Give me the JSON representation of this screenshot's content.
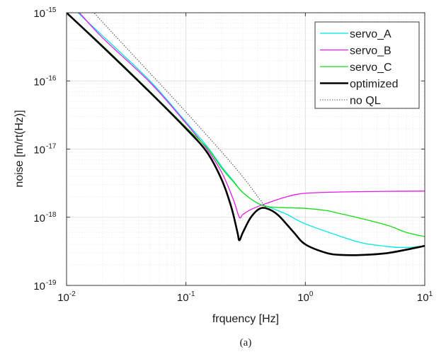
{
  "chart_data": {
    "type": "line",
    "title": "",
    "xlabel": "frquency [Hz]",
    "ylabel": "noise [m/rt(Hz)]",
    "caption": "(a)",
    "x_scale": "log",
    "y_scale": "log",
    "xlim": [
      0.01,
      10
    ],
    "ylim": [
      1e-19,
      1e-15
    ],
    "x_ticks": [
      {
        "value": 0.01,
        "base": "10",
        "exp": "-2"
      },
      {
        "value": 0.1,
        "base": "10",
        "exp": "-1"
      },
      {
        "value": 1,
        "base": "10",
        "exp": "0"
      },
      {
        "value": 10,
        "base": "10",
        "exp": "1"
      }
    ],
    "y_ticks": [
      {
        "value": 1e-19,
        "base": "10",
        "exp": "-19"
      },
      {
        "value": 1e-18,
        "base": "10",
        "exp": "-18"
      },
      {
        "value": 1e-17,
        "base": "10",
        "exp": "-17"
      },
      {
        "value": 1e-16,
        "base": "10",
        "exp": "-16"
      },
      {
        "value": 1e-15,
        "base": "10",
        "exp": "-15"
      }
    ],
    "grid": true,
    "minor_grid": true,
    "legend_position": "top-right",
    "series": [
      {
        "name": "servo_A",
        "color": "#00e5e5",
        "width": 1.3,
        "style": "solid",
        "points": [
          [
            0.01,
            1.6e-15
          ],
          [
            0.0125,
            1e-15
          ],
          [
            0.02,
            4.6e-16
          ],
          [
            0.05,
            1e-16
          ],
          [
            0.1,
            2.5e-17
          ],
          [
            0.15,
            1.1e-17
          ],
          [
            0.2,
            5.5e-18
          ],
          [
            0.25,
            3.4e-18
          ],
          [
            0.3,
            2.3e-18
          ],
          [
            0.4,
            1.6e-18
          ],
          [
            0.5,
            1.4e-18
          ],
          [
            0.7,
            1.1e-18
          ],
          [
            1,
            8e-19
          ],
          [
            2,
            5.2e-19
          ],
          [
            3,
            4.2e-19
          ],
          [
            5,
            3.7e-19
          ],
          [
            7,
            3.6e-19
          ],
          [
            10,
            3.8e-19
          ]
        ]
      },
      {
        "name": "servo_B",
        "color": "#e619e6",
        "width": 1.3,
        "style": "solid",
        "points": [
          [
            0.01,
            1.5e-15
          ],
          [
            0.0128,
            1e-15
          ],
          [
            0.02,
            4.3e-16
          ],
          [
            0.05,
            9.5e-17
          ],
          [
            0.1,
            2.4e-17
          ],
          [
            0.15,
            1e-17
          ],
          [
            0.2,
            4.5e-18
          ],
          [
            0.25,
            1.8e-18
          ],
          [
            0.28,
            1e-18
          ],
          [
            0.3,
            1.1e-18
          ],
          [
            0.35,
            1.3e-18
          ],
          [
            0.45,
            1.55e-18
          ],
          [
            0.7,
            2e-18
          ],
          [
            1,
            2.25e-18
          ],
          [
            2,
            2.35e-18
          ],
          [
            5,
            2.4e-18
          ],
          [
            10,
            2.42e-18
          ]
        ]
      },
      {
        "name": "servo_C",
        "color": "#19d919",
        "width": 1.3,
        "style": "solid",
        "points": [
          [
            0.01,
            1e-15
          ],
          [
            0.02,
            3.3e-16
          ],
          [
            0.05,
            7e-17
          ],
          [
            0.1,
            2.1e-17
          ],
          [
            0.15,
            1.05e-17
          ],
          [
            0.2,
            5.2e-18
          ],
          [
            0.25,
            3.3e-18
          ],
          [
            0.3,
            2.3e-18
          ],
          [
            0.4,
            1.6e-18
          ],
          [
            0.5,
            1.42e-18
          ],
          [
            0.7,
            1.38e-18
          ],
          [
            1,
            1.35e-18
          ],
          [
            1.5,
            1.25e-18
          ],
          [
            2,
            1.12e-18
          ],
          [
            3,
            9.5e-19
          ],
          [
            5,
            7.5e-19
          ],
          [
            7,
            6e-19
          ],
          [
            10,
            5.2e-19
          ]
        ]
      },
      {
        "name": "optimized",
        "color": "#000000",
        "width": 2.6,
        "style": "solid",
        "points": [
          [
            0.01,
            1e-15
          ],
          [
            0.02,
            3.2e-16
          ],
          [
            0.05,
            6.8e-17
          ],
          [
            0.1,
            2e-17
          ],
          [
            0.15,
            9e-18
          ],
          [
            0.2,
            3.5e-18
          ],
          [
            0.24,
            1.4e-18
          ],
          [
            0.27,
            6e-19
          ],
          [
            0.28,
            4.6e-19
          ],
          [
            0.3,
            6e-19
          ],
          [
            0.35,
            1e-18
          ],
          [
            0.42,
            1.35e-18
          ],
          [
            0.5,
            1.3e-18
          ],
          [
            0.6,
            1.05e-18
          ],
          [
            0.8,
            6e-19
          ],
          [
            1,
            4e-19
          ],
          [
            1.5,
            3e-19
          ],
          [
            2,
            2.8e-19
          ],
          [
            3,
            2.8e-19
          ],
          [
            5,
            3e-19
          ],
          [
            10,
            3.8e-19
          ]
        ]
      },
      {
        "name": "no QL",
        "color": "#333333",
        "width": 1.1,
        "style": "dotted",
        "points": [
          [
            0.01,
            3e-15
          ],
          [
            0.017,
            1e-15
          ],
          [
            0.03,
            3.4e-16
          ],
          [
            0.05,
            1.3e-16
          ],
          [
            0.1,
            3.5e-17
          ],
          [
            0.2,
            9e-18
          ],
          [
            0.3,
            3.9e-18
          ],
          [
            0.4,
            2e-18
          ],
          [
            0.44,
            1.6e-18
          ],
          [
            0.48,
            1.35e-18
          ]
        ]
      }
    ]
  }
}
